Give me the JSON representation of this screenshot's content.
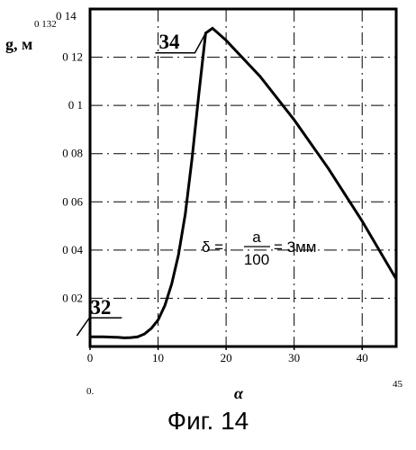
{
  "chart_data": {
    "type": "line",
    "xlabel": "α",
    "ylabel": "g, м",
    "xlim": [
      0,
      45
    ],
    "ylim": [
      0,
      0.14
    ],
    "x_ticks": [
      "0",
      "10",
      "20",
      "30",
      "40"
    ],
    "y_ticks": [
      "0 02",
      "0 04",
      "0 06",
      "0 08",
      "0 1",
      "0 12"
    ],
    "y_top_label": "0 14",
    "peak_label": "0 132",
    "x_min_label": "0.",
    "x_max_label": "45",
    "series": [
      {
        "x": [
          0,
          2,
          4,
          5,
          6,
          7,
          8,
          9,
          10,
          11,
          12,
          13,
          14,
          15,
          16,
          17,
          18,
          20,
          25,
          30,
          35,
          40,
          45
        ],
        "y": [
          0.004,
          0.004,
          0.0038,
          0.0036,
          0.0037,
          0.004,
          0.0052,
          0.0075,
          0.011,
          0.017,
          0.026,
          0.038,
          0.055,
          0.078,
          0.105,
          0.13,
          0.132,
          0.127,
          0.112,
          0.094,
          0.074,
          0.052,
          0.028
        ]
      }
    ],
    "annotations": [
      {
        "label": "34",
        "x": 17
      },
      {
        "label": "32",
        "x": 6
      }
    ],
    "formula": {
      "lhs": "δ =",
      "numerator": "a",
      "denominator": "100",
      "rhs": "= 3мм"
    },
    "grid": "dash-dot"
  },
  "caption": "Фиг. 14"
}
